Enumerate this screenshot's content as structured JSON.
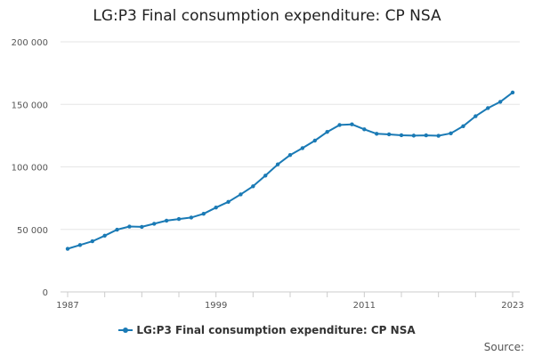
{
  "colors": {
    "series": "#1a7ab5",
    "grid": "#e6e6e6",
    "axis": "#cccccc"
  },
  "source_label": "Source:",
  "chart_data": {
    "type": "line",
    "title": "LG:P3 Final consumption expenditure: CP NSA",
    "xlabel": "",
    "ylabel": "",
    "xlim": [
      1987,
      2023
    ],
    "ylim": [
      0,
      200000
    ],
    "yticks": [
      0,
      50000,
      100000,
      150000,
      200000
    ],
    "ytick_labels": [
      "0",
      "50 000",
      "100 000",
      "150 000",
      "200 000"
    ],
    "xticks_labeled": [
      1987,
      1999,
      2011,
      2023
    ],
    "xtick_labels": [
      "1987",
      "1999",
      "2011",
      "2023"
    ],
    "grid": true,
    "legend": "bottom",
    "series": [
      {
        "name": "LG:P3 Final consumption expenditure: CP NSA",
        "x": [
          1987,
          1988,
          1989,
          1990,
          1991,
          1992,
          1993,
          1994,
          1995,
          1996,
          1997,
          1998,
          1999,
          2000,
          2001,
          2002,
          2003,
          2004,
          2005,
          2006,
          2007,
          2008,
          2009,
          2010,
          2011,
          2012,
          2013,
          2014,
          2015,
          2016,
          2017,
          2018,
          2019,
          2020,
          2021,
          2022,
          2023
        ],
        "values": [
          34500,
          37500,
          40500,
          45000,
          49800,
          52300,
          52000,
          54500,
          57000,
          58300,
          59500,
          62500,
          67500,
          72000,
          78000,
          84500,
          93000,
          102000,
          109500,
          115000,
          121000,
          128000,
          133500,
          134000,
          130000,
          126500,
          126000,
          125300,
          125000,
          125200,
          124900,
          126800,
          132500,
          140500,
          147000,
          152000,
          159500
        ]
      }
    ]
  }
}
